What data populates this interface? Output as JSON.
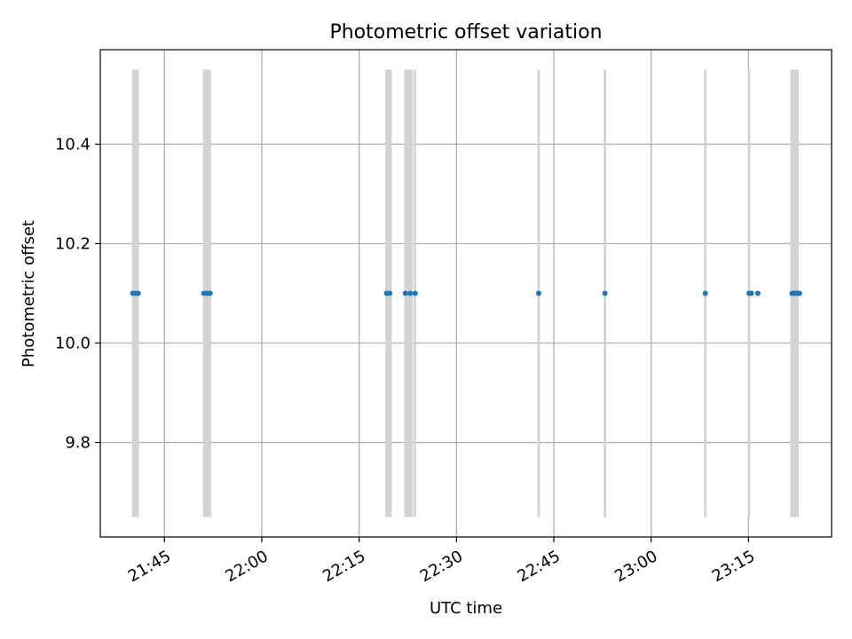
{
  "chart_data": {
    "type": "scatter",
    "title": "Photometric offset variation",
    "xlabel": "UTC time",
    "ylabel": "Photometric offset",
    "x_tick_labels": [
      "21:45",
      "22:00",
      "22:15",
      "22:30",
      "22:45",
      "23:00",
      "23:15"
    ],
    "y_tick_labels": [
      "9.8",
      "10.0",
      "10.2",
      "10.4"
    ],
    "xlim": [
      "21:35:07",
      "23:27:48"
    ],
    "ylim": [
      9.61,
      10.59
    ],
    "grid": true,
    "points_y": 10.1,
    "points": [
      "21:40:08",
      "21:40:33",
      "21:40:58",
      "21:51:04",
      "21:51:33",
      "21:52:02",
      "22:19:14",
      "22:19:43",
      "22:22:07",
      "22:22:52",
      "22:23:38",
      "22:42:40",
      "22:52:53",
      "23:08:20",
      "23:15:05",
      "23:15:27",
      "23:16:26",
      "23:21:43",
      "23:22:06",
      "23:22:29",
      "23:22:52"
    ],
    "error_bands": [
      {
        "start": "21:40:00",
        "end": "21:41:05",
        "low": 9.65,
        "high": 10.55
      },
      {
        "start": "21:50:57",
        "end": "21:52:12",
        "low": 9.65,
        "high": 10.55
      },
      {
        "start": "22:19:02",
        "end": "22:20:02",
        "low": 9.65,
        "high": 10.55
      },
      {
        "start": "22:21:57",
        "end": "22:23:17",
        "low": 9.65,
        "high": 10.55
      },
      {
        "start": "22:23:24",
        "end": "22:23:46",
        "low": 9.65,
        "high": 10.55
      },
      {
        "start": "22:42:29",
        "end": "22:42:51",
        "low": 9.65,
        "high": 10.55
      },
      {
        "start": "22:52:42",
        "end": "22:53:04",
        "low": 9.65,
        "high": 10.55
      },
      {
        "start": "23:08:09",
        "end": "23:08:31",
        "low": 9.65,
        "high": 10.55
      },
      {
        "start": "23:14:55",
        "end": "23:15:17",
        "low": 9.65,
        "high": 10.55
      },
      {
        "start": "23:21:26",
        "end": "23:22:45",
        "low": 9.65,
        "high": 10.55
      }
    ],
    "colors": {
      "points": "#1f77b4",
      "error_bands": "#d3d3d3",
      "grid": "#b0b0b0",
      "axes": "#000000"
    }
  }
}
